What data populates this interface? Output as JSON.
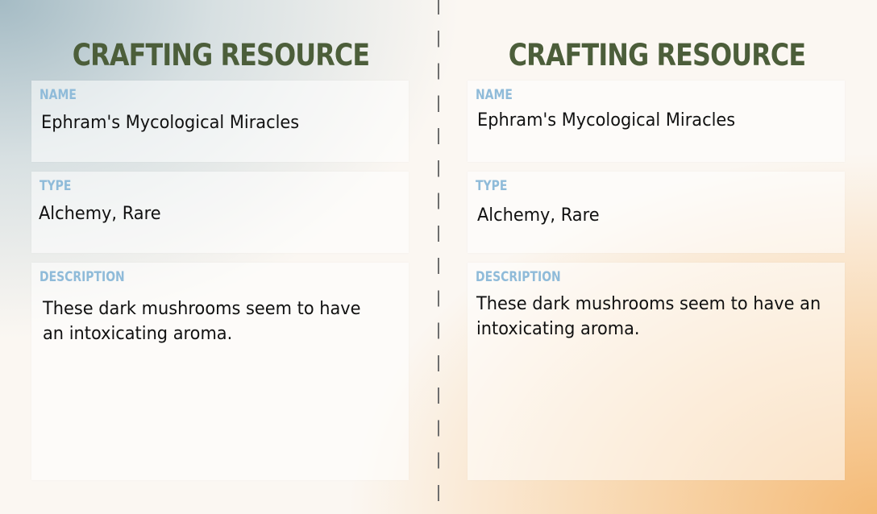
{
  "cards": [
    {
      "title": "CRAFTING RESOURCE",
      "name_label": "NAME",
      "name_value": "Ephram's Mycological Miracles",
      "type_label": "TYPE",
      "type_value": "Alchemy, Rare",
      "description_label": "DESCRIPTION",
      "description_value": "These dark mushrooms seem to have an intoxicating aroma."
    },
    {
      "title": "CRAFTING RESOURCE",
      "name_label": "NAME",
      "name_value": "Ephram's Mycological Miracles",
      "type_label": "TYPE",
      "type_value": "Alchemy, Rare",
      "description_label": "DESCRIPTION",
      "description_value": "These dark mushrooms seem to have an intoxicating aroma."
    }
  ],
  "colors": {
    "title": "#4c5e3a",
    "label": "#8fbbd9",
    "divider": "#6e6e6e"
  }
}
